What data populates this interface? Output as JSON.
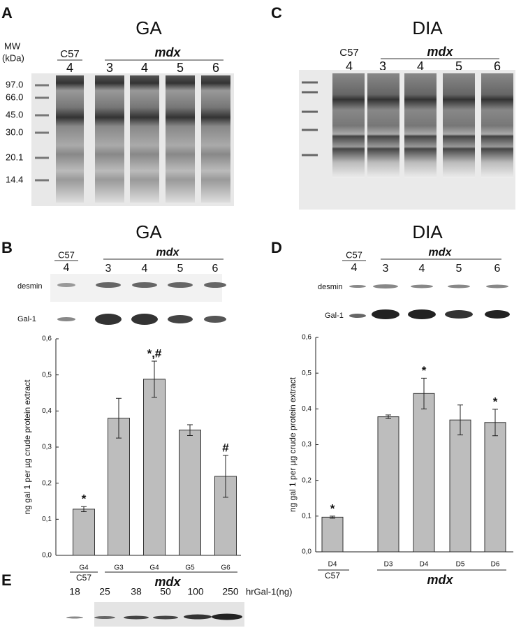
{
  "panels": {
    "A": {
      "letter": "A",
      "title": "GA",
      "mw_label": "MW",
      "mw_unit": "(kDa)",
      "markers": [
        "97.0",
        "66.0",
        "45.0",
        "30.0",
        "20.1",
        "14.4"
      ],
      "control": "C57",
      "control_lane": "4",
      "group": "mdx",
      "lanes": [
        "3",
        "4",
        "5",
        "6"
      ]
    },
    "C": {
      "letter": "C",
      "title": "DIA",
      "control": "C57",
      "control_lane": "4",
      "group": "mdx",
      "lanes": [
        "3",
        "4",
        "5",
        "6"
      ]
    },
    "B": {
      "letter": "B",
      "title": "GA",
      "control": "C57",
      "control_lane": "4",
      "group": "mdx",
      "lanes": [
        "3",
        "4",
        "5",
        "6"
      ],
      "blots": [
        "desmin",
        "Gal-1"
      ]
    },
    "D": {
      "letter": "D",
      "title": "DIA",
      "control": "C57",
      "control_lane": "4",
      "group": "mdx",
      "lanes": [
        "3",
        "4",
        "5",
        "6"
      ],
      "blots": [
        "desmin",
        "Gal-1"
      ]
    },
    "E": {
      "letter": "E",
      "amounts": [
        "18",
        "25",
        "38",
        "50",
        "100",
        "250"
      ],
      "unit": "hrGal-1(ng)"
    }
  },
  "chart_data": [
    {
      "type": "bar",
      "y_label": "ng gal 1 per µg crude protein extract",
      "groups": [
        {
          "name": "C57",
          "categories": [
            "G4"
          ]
        },
        {
          "name": "mdx",
          "categories": [
            "G3",
            "G4",
            "G5",
            "G6"
          ]
        }
      ],
      "values": [
        0.128,
        0.38,
        0.488,
        0.347,
        0.219
      ],
      "errors": [
        0.007,
        0.055,
        0.05,
        0.015,
        0.058
      ],
      "value_annotations": [
        "*",
        null,
        "*,#",
        null,
        "#"
      ],
      "color": "#bdbdbd",
      "ylim": [
        0,
        0.6
      ],
      "yticks": [
        {
          "value": 0,
          "label": "0,0"
        },
        {
          "value": 0.1,
          "label": "0,1"
        },
        {
          "value": 0.2,
          "label": "0,2"
        },
        {
          "value": 0.3,
          "label": "0,3"
        },
        {
          "value": 0.4,
          "label": "0,4"
        },
        {
          "value": 0.5,
          "label": "0,5"
        },
        {
          "value": 0.6,
          "label": "0,6"
        }
      ]
    },
    {
      "type": "bar",
      "y_label": "ng gal 1 per µg crude protein extract",
      "groups": [
        {
          "name": "C57",
          "categories": [
            "D4"
          ]
        },
        {
          "name": "mdx",
          "categories": [
            "D3",
            "D4",
            "D5",
            "D6"
          ]
        }
      ],
      "values": [
        0.097,
        0.378,
        0.443,
        0.369,
        0.362
      ],
      "errors": [
        0.003,
        0.005,
        0.043,
        0.042,
        0.037
      ],
      "value_annotations": [
        "*",
        null,
        "*",
        null,
        "*"
      ],
      "color": "#bdbdbd",
      "ylim": [
        0,
        0.6
      ],
      "yticks": [
        {
          "value": 0,
          "label": "0,0"
        },
        {
          "value": 0.1,
          "label": "0,1"
        },
        {
          "value": 0.2,
          "label": "0,2"
        },
        {
          "value": 0.3,
          "label": "0,3"
        },
        {
          "value": 0.4,
          "label": "0,4"
        },
        {
          "value": 0.5,
          "label": "0,5"
        },
        {
          "value": 0.6,
          "label": "0,6"
        }
      ]
    }
  ]
}
